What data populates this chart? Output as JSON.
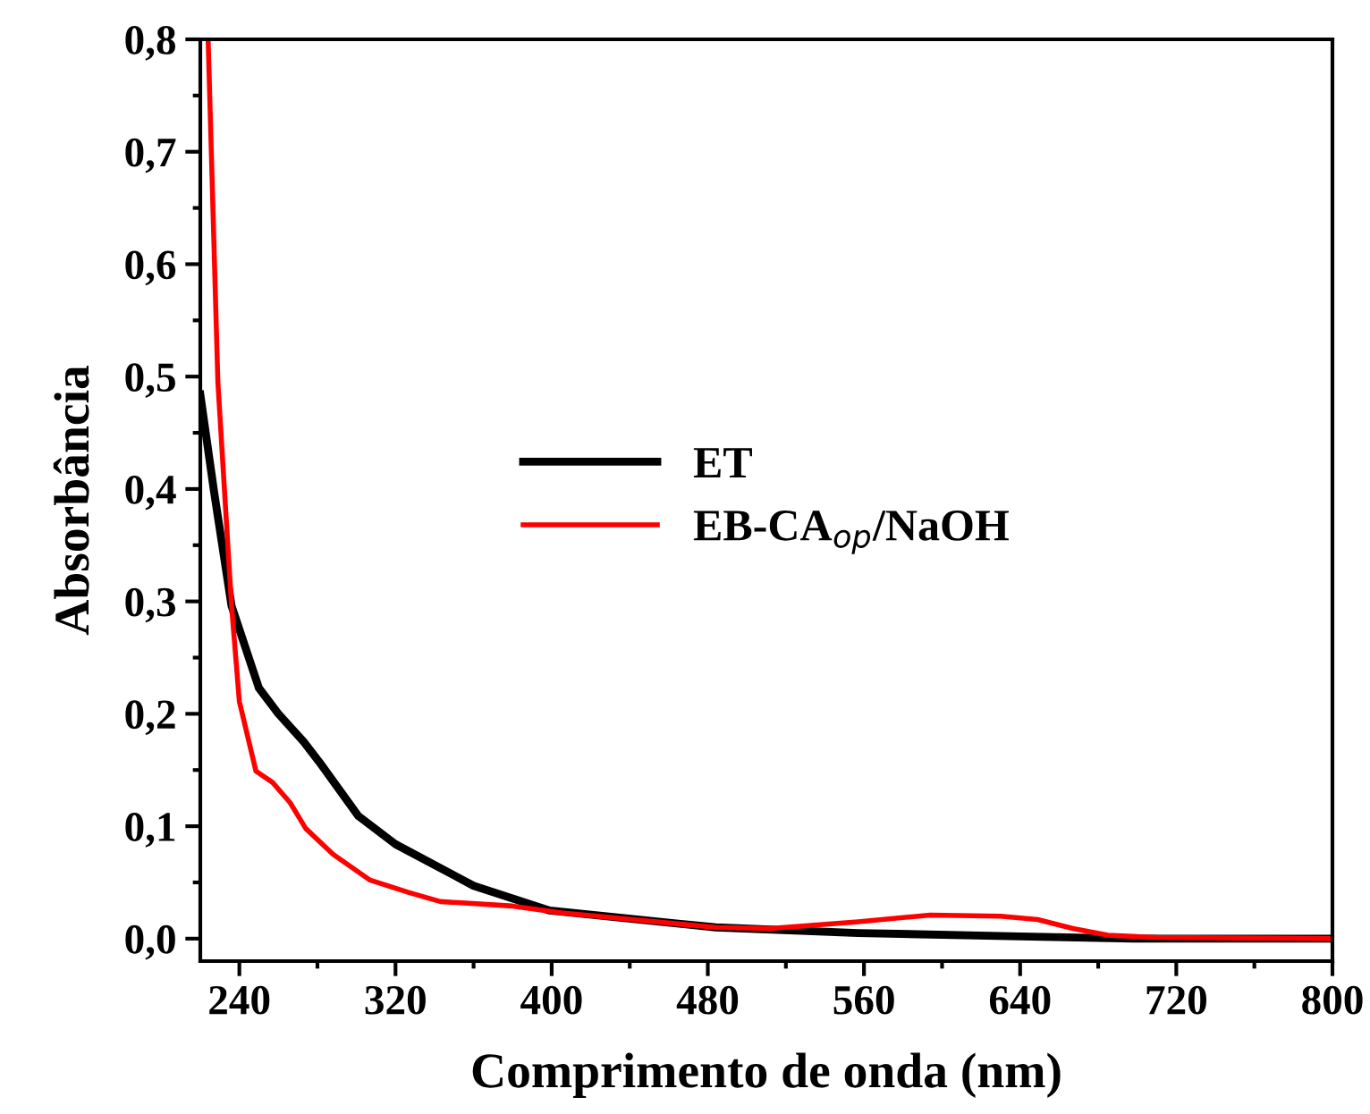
{
  "chart_data": {
    "type": "line",
    "xlabel": "Comprimento de onda (nm)",
    "ylabel": "Absorbância",
    "xlim": [
      220,
      800
    ],
    "ylim": [
      -0.02,
      0.8
    ],
    "xticks": [
      240,
      320,
      400,
      480,
      560,
      640,
      720,
      800
    ],
    "yticks": [
      {
        "value": 0.0,
        "label": "0,0"
      },
      {
        "value": 0.1,
        "label": "0,1"
      },
      {
        "value": 0.2,
        "label": "0,2"
      },
      {
        "value": 0.3,
        "label": "0,3"
      },
      {
        "value": 0.4,
        "label": "0,4"
      },
      {
        "value": 0.5,
        "label": "0,5"
      },
      {
        "value": 0.6,
        "label": "0,6"
      },
      {
        "value": 0.7,
        "label": "0,7"
      },
      {
        "value": 0.8,
        "label": "0,8"
      }
    ],
    "grid": false,
    "legend": "center",
    "marker": "none",
    "line_style": "solid",
    "series": [
      {
        "name": "ET",
        "color": "#000000",
        "x": [
          220,
          227,
          236,
          250,
          260,
          273,
          281,
          301,
          320,
          360,
          399,
          484,
          557,
          640,
          698,
          800
        ],
        "values": [
          0.484,
          0.398,
          0.296,
          0.223,
          0.2,
          0.175,
          0.157,
          0.109,
          0.084,
          0.047,
          0.025,
          0.01,
          0.005,
          0.002,
          0.0,
          0.0
        ]
      },
      {
        "name": "EB-CA$_{op}$/NaOH",
        "color": "#ff0000",
        "x": [
          224,
          229,
          236,
          240,
          248.5,
          257,
          266,
          274,
          288,
          307,
          327,
          343,
          380,
          405,
          484,
          512,
          557,
          594,
          630,
          649,
          667,
          685,
          710,
          800
        ],
        "values": [
          0.8,
          0.495,
          0.296,
          0.211,
          0.149,
          0.139,
          0.121,
          0.098,
          0.075,
          0.052,
          0.041,
          0.033,
          0.029,
          0.023,
          0.01,
          0.009,
          0.015,
          0.021,
          0.02,
          0.017,
          0.009,
          0.003,
          0.001,
          0.0
        ]
      }
    ]
  }
}
